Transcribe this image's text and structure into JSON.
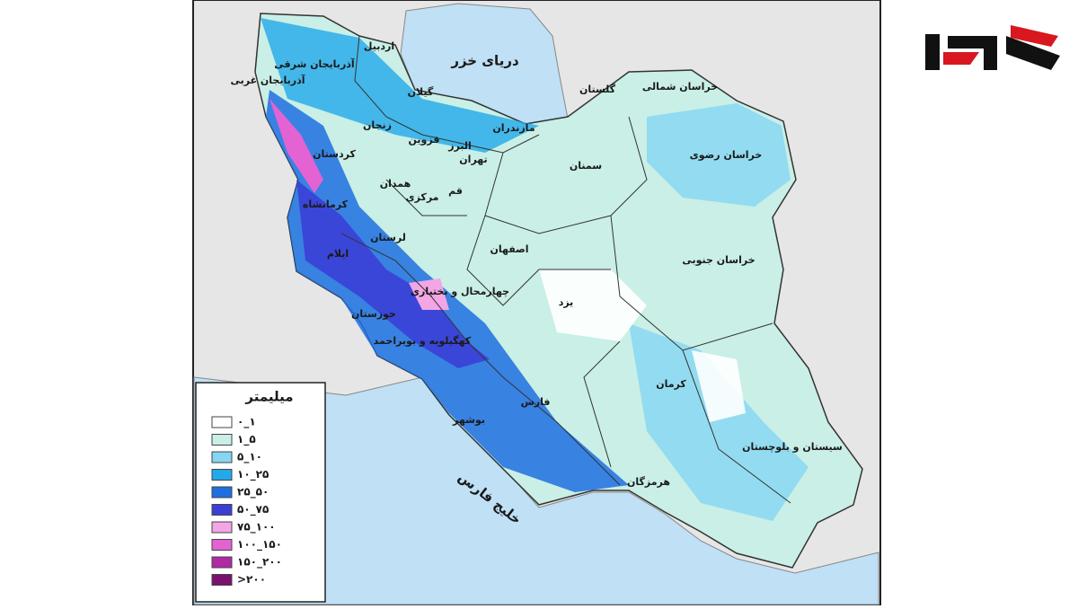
{
  "seas": [
    {
      "label": "دریای خزر"
    },
    {
      "label": "خلیج فارس"
    }
  ],
  "provinces": [
    {
      "label": "اردبیل"
    },
    {
      "label": "آذربایجان شرقی"
    },
    {
      "label": "آذربایجان غربی"
    },
    {
      "label": "گیلان"
    },
    {
      "label": "زنجان"
    },
    {
      "label": "مازندران"
    },
    {
      "label": "قزوین"
    },
    {
      "label": "البرز"
    },
    {
      "label": "تهران"
    },
    {
      "label": "کردستان"
    },
    {
      "label": "همدان"
    },
    {
      "label": "قم"
    },
    {
      "label": "مرکزی"
    },
    {
      "label": "سمنان"
    },
    {
      "label": "گلستان"
    },
    {
      "label": "خراسان شمالی"
    },
    {
      "label": "خراسان رضوی"
    },
    {
      "label": "کرمانشاه"
    },
    {
      "label": "لرستان"
    },
    {
      "label": "ایلام"
    },
    {
      "label": "اصفهان"
    },
    {
      "label": "خراسان جنوبی"
    },
    {
      "label": "چهارمحال و بختیاری"
    },
    {
      "label": "یزد"
    },
    {
      "label": "خوزستان"
    },
    {
      "label": "کهگیلویه و بویراحمد"
    },
    {
      "label": "کرمان"
    },
    {
      "label": "فارس"
    },
    {
      "label": "بوشهر"
    },
    {
      "label": "سیستان و بلوچستان"
    },
    {
      "label": "هرمزگان"
    }
  ],
  "legend": {
    "title": "میلیمتر",
    "items": [
      {
        "label": "۰_۱",
        "color": "#ffffff"
      },
      {
        "label": "۱_۵",
        "color": "#c9efe6"
      },
      {
        "label": "۵_۱۰",
        "color": "#86d6f2"
      },
      {
        "label": "۱۰_۲۵",
        "color": "#22a9ea"
      },
      {
        "label": "۲۵_۵۰",
        "color": "#1f6fe0"
      },
      {
        "label": "۵۰_۷۵",
        "color": "#3b3fd6"
      },
      {
        "label": "۷۵_۱۰۰",
        "color": "#f2a6e4"
      },
      {
        "label": "۱۰۰_۱۵۰",
        "color": "#e363d3"
      },
      {
        "label": "۱۵۰_۲۰۰",
        "color": "#b02aa3"
      },
      {
        "label": ">۲۰۰",
        "color": "#7a1070"
      }
    ]
  }
}
